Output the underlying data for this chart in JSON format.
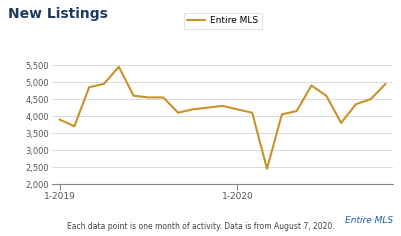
{
  "title": "New Listings",
  "legend_label": "Entire MLS",
  "line_color": "#C8922A",
  "line_width": 1.5,
  "x_tick_labels": [
    "1-2019",
    "1-2020"
  ],
  "x_tick_positions": [
    0,
    12
  ],
  "ylim": [
    2000,
    5750
  ],
  "yticks": [
    2000,
    2500,
    3000,
    3500,
    4000,
    4500,
    5000,
    5500
  ],
  "ytick_labels": [
    "2,000",
    "2,500",
    "3,000",
    "3,500",
    "4,000",
    "4,500",
    "5,000",
    "5,500"
  ],
  "footer_label": "Entire MLS",
  "footer_note": "Each data point is one month of activity. Data is from August 7, 2020.",
  "background_color": "#ffffff",
  "title_color": "#1e3a5f",
  "footer_label_color": "#1F5FA6",
  "grid_color": "#cccccc",
  "values": [
    3900,
    3700,
    4850,
    4950,
    5450,
    4600,
    4550,
    4550,
    4100,
    4200,
    4250,
    4300,
    4200,
    4100,
    2450,
    4050,
    4150,
    4900,
    4600,
    3800,
    4350,
    4500,
    4950
  ]
}
